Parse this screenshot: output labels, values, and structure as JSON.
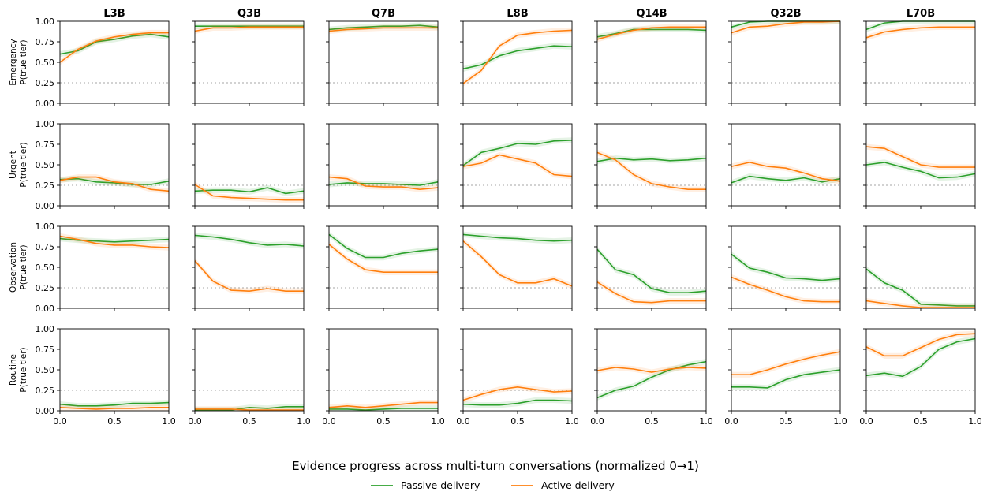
{
  "chart_data": {
    "type": "line",
    "title": "",
    "xlabel": "Evidence progress across multi-turn conversations (normalized 0→1)",
    "xlim": [
      0,
      1
    ],
    "ylim": [
      0,
      1
    ],
    "x_ticks": [
      "0.0",
      "0.5",
      "1.0"
    ],
    "y_ticks": [
      "0.00",
      "0.25",
      "0.50",
      "0.75",
      "1.00"
    ],
    "reference_line": 0.25,
    "x": [
      0,
      0.1667,
      0.3333,
      0.5,
      0.6667,
      0.8333,
      1.0
    ],
    "models": [
      "L3B",
      "Q3B",
      "Q7B",
      "L8B",
      "Q14B",
      "Q32B",
      "L70B"
    ],
    "tiers": [
      {
        "name": "Emergency",
        "ylabel": "P(true tier)"
      },
      {
        "name": "Urgent",
        "ylabel": "P(true tier)"
      },
      {
        "name": "Observation",
        "ylabel": "P(true tier)"
      },
      {
        "name": "Routine",
        "ylabel": "P(true tier)"
      }
    ],
    "legend": [
      {
        "name": "Passive delivery",
        "color": "#2ca02c"
      },
      {
        "name": "Active delivery",
        "color": "#ff7f0e"
      }
    ],
    "legend_position": "bottom-center",
    "grid": false,
    "passive": [
      [
        [
          0.6,
          0.64,
          0.75,
          0.78,
          0.82,
          0.84,
          0.81
        ],
        [
          0.94,
          0.94,
          0.94,
          0.94,
          0.94,
          0.94,
          0.94
        ],
        [
          0.9,
          0.92,
          0.93,
          0.94,
          0.94,
          0.95,
          0.93
        ],
        [
          0.42,
          0.47,
          0.58,
          0.64,
          0.67,
          0.7,
          0.69
        ],
        [
          0.81,
          0.85,
          0.9,
          0.9,
          0.9,
          0.9,
          0.89
        ],
        [
          0.93,
          0.99,
          1.0,
          1.0,
          1.0,
          1.0,
          1.0
        ],
        [
          0.9,
          0.98,
          1.0,
          1.0,
          1.0,
          1.0,
          1.0
        ]
      ],
      [
        [
          0.32,
          0.33,
          0.29,
          0.28,
          0.26,
          0.26,
          0.3
        ],
        [
          0.18,
          0.19,
          0.19,
          0.17,
          0.22,
          0.15,
          0.18
        ],
        [
          0.26,
          0.28,
          0.27,
          0.27,
          0.26,
          0.25,
          0.29
        ],
        [
          0.49,
          0.65,
          0.7,
          0.76,
          0.75,
          0.79,
          0.8
        ],
        [
          0.54,
          0.58,
          0.56,
          0.57,
          0.55,
          0.56,
          0.58
        ],
        [
          0.28,
          0.36,
          0.33,
          0.31,
          0.34,
          0.29,
          0.33
        ],
        [
          0.5,
          0.53,
          0.47,
          0.42,
          0.34,
          0.35,
          0.39
        ]
      ],
      [
        [
          0.85,
          0.83,
          0.82,
          0.81,
          0.82,
          0.83,
          0.84
        ],
        [
          0.89,
          0.87,
          0.84,
          0.8,
          0.77,
          0.78,
          0.76
        ],
        [
          0.9,
          0.73,
          0.62,
          0.62,
          0.67,
          0.7,
          0.72
        ],
        [
          0.9,
          0.88,
          0.86,
          0.85,
          0.83,
          0.82,
          0.83
        ],
        [
          0.72,
          0.47,
          0.41,
          0.24,
          0.19,
          0.19,
          0.21
        ],
        [
          0.66,
          0.49,
          0.44,
          0.37,
          0.36,
          0.34,
          0.36
        ],
        [
          0.48,
          0.31,
          0.22,
          0.05,
          0.04,
          0.03,
          0.03
        ]
      ],
      [
        [
          0.08,
          0.06,
          0.06,
          0.07,
          0.09,
          0.09,
          0.1
        ],
        [
          0.01,
          0.01,
          0.01,
          0.04,
          0.03,
          0.05,
          0.05
        ],
        [
          0.02,
          0.02,
          0.01,
          0.02,
          0.03,
          0.03,
          0.03
        ],
        [
          0.08,
          0.07,
          0.07,
          0.09,
          0.13,
          0.13,
          0.12
        ],
        [
          0.16,
          0.25,
          0.3,
          0.41,
          0.5,
          0.56,
          0.6
        ],
        [
          0.29,
          0.29,
          0.28,
          0.38,
          0.44,
          0.47,
          0.5
        ],
        [
          0.43,
          0.46,
          0.42,
          0.54,
          0.75,
          0.84,
          0.88
        ]
      ]
    ],
    "active": [
      [
        [
          0.5,
          0.66,
          0.76,
          0.81,
          0.84,
          0.86,
          0.86
        ],
        [
          0.88,
          0.92,
          0.92,
          0.93,
          0.93,
          0.93,
          0.93
        ],
        [
          0.88,
          0.9,
          0.91,
          0.92,
          0.92,
          0.92,
          0.92
        ],
        [
          0.24,
          0.4,
          0.7,
          0.83,
          0.86,
          0.88,
          0.89
        ],
        [
          0.78,
          0.84,
          0.89,
          0.92,
          0.93,
          0.93,
          0.93
        ],
        [
          0.86,
          0.93,
          0.94,
          0.97,
          0.99,
          0.99,
          1.0
        ],
        [
          0.8,
          0.87,
          0.9,
          0.92,
          0.93,
          0.93,
          0.93
        ]
      ],
      [
        [
          0.31,
          0.35,
          0.35,
          0.29,
          0.27,
          0.2,
          0.18
        ],
        [
          0.26,
          0.12,
          0.1,
          0.09,
          0.08,
          0.07,
          0.07
        ],
        [
          0.35,
          0.33,
          0.24,
          0.23,
          0.23,
          0.2,
          0.22
        ],
        [
          0.48,
          0.52,
          0.62,
          0.57,
          0.52,
          0.38,
          0.36
        ],
        [
          0.65,
          0.56,
          0.38,
          0.27,
          0.23,
          0.2,
          0.2
        ],
        [
          0.48,
          0.53,
          0.48,
          0.46,
          0.4,
          0.33,
          0.3
        ],
        [
          0.72,
          0.7,
          0.6,
          0.5,
          0.47,
          0.47,
          0.47
        ]
      ],
      [
        [
          0.88,
          0.84,
          0.79,
          0.77,
          0.77,
          0.75,
          0.74
        ],
        [
          0.58,
          0.33,
          0.22,
          0.21,
          0.24,
          0.21,
          0.21
        ],
        [
          0.78,
          0.6,
          0.47,
          0.44,
          0.44,
          0.44,
          0.44
        ],
        [
          0.82,
          0.63,
          0.41,
          0.31,
          0.31,
          0.36,
          0.27
        ],
        [
          0.32,
          0.18,
          0.08,
          0.07,
          0.09,
          0.09,
          0.09
        ],
        [
          0.38,
          0.29,
          0.22,
          0.14,
          0.09,
          0.08,
          0.08
        ],
        [
          0.09,
          0.06,
          0.03,
          0.01,
          0.01,
          0.01,
          0.01
        ]
      ],
      [
        [
          0.04,
          0.03,
          0.02,
          0.03,
          0.03,
          0.04,
          0.04
        ],
        [
          0.02,
          0.02,
          0.02,
          0.01,
          0.01,
          0.01,
          0.01
        ],
        [
          0.04,
          0.06,
          0.04,
          0.06,
          0.08,
          0.1,
          0.1
        ],
        [
          0.13,
          0.2,
          0.26,
          0.29,
          0.26,
          0.23,
          0.24
        ],
        [
          0.49,
          0.53,
          0.51,
          0.47,
          0.51,
          0.53,
          0.52
        ],
        [
          0.44,
          0.44,
          0.5,
          0.57,
          0.63,
          0.68,
          0.72
        ],
        [
          0.78,
          0.67,
          0.67,
          0.77,
          0.87,
          0.93,
          0.94
        ]
      ]
    ]
  }
}
